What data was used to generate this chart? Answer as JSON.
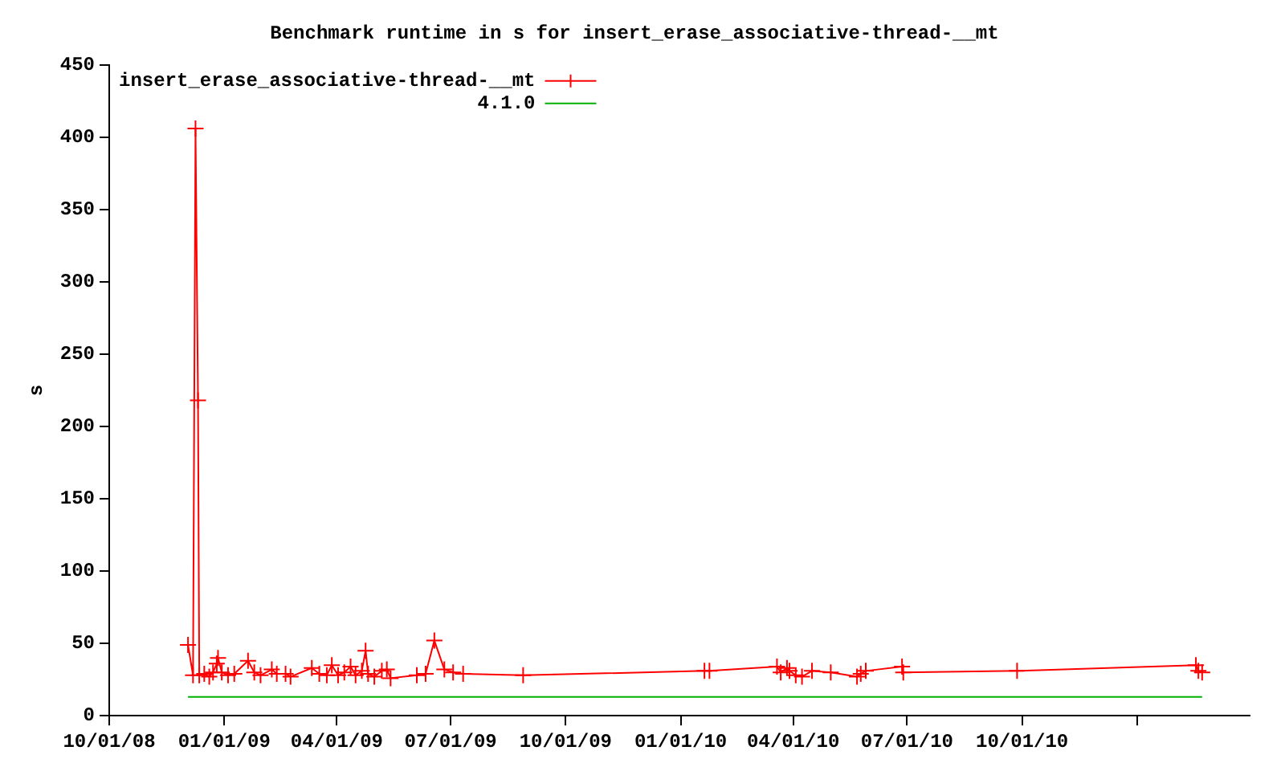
{
  "chart_data": {
    "type": "line",
    "title": "Benchmark runtime in s for insert_erase_associative-thread-__mt",
    "ylabel": "s",
    "xlim": [
      "2008-10-01",
      "2011-04-01"
    ],
    "xticks": [
      {
        "value": "2008-10-01",
        "label": "10/01/08"
      },
      {
        "value": "2009-01-01",
        "label": "01/01/09"
      },
      {
        "value": "2009-04-01",
        "label": "04/01/09"
      },
      {
        "value": "2009-07-01",
        "label": "07/01/09"
      },
      {
        "value": "2009-10-01",
        "label": "10/01/09"
      },
      {
        "value": "2010-01-01",
        "label": "01/01/10"
      },
      {
        "value": "2010-04-01",
        "label": "04/01/10"
      },
      {
        "value": "2010-07-01",
        "label": "07/01/10"
      },
      {
        "value": "2010-10-01",
        "label": "10/01/10"
      },
      {
        "value": "2011-01-01",
        "label": null
      }
    ],
    "ylim": [
      0,
      450
    ],
    "yticks": [
      0,
      50,
      100,
      150,
      200,
      250,
      300,
      350,
      400,
      450
    ],
    "grid": false,
    "legend": "top left",
    "series": [
      {
        "name": "insert_erase_associative-thread-__mt",
        "color": "#ff0000",
        "marker": "cross",
        "x": [
          "2008-12-03",
          "2008-12-07",
          "2008-12-09",
          "2008-12-11",
          "2008-12-12",
          "2008-12-16",
          "2008-12-20",
          "2008-12-23",
          "2008-12-26",
          "2008-12-27",
          "2008-12-30",
          "2009-01-04",
          "2009-01-09",
          "2009-01-20",
          "2009-01-25",
          "2009-01-30",
          "2009-02-08",
          "2009-02-12",
          "2009-02-19",
          "2009-02-23",
          "2009-03-12",
          "2009-03-18",
          "2009-03-24",
          "2009-03-28",
          "2009-04-02",
          "2009-04-07",
          "2009-04-12",
          "2009-04-16",
          "2009-04-21",
          "2009-04-24",
          "2009-04-26",
          "2009-05-01",
          "2009-05-07",
          "2009-05-11",
          "2009-05-14",
          "2009-06-04",
          "2009-06-11",
          "2009-06-18",
          "2009-06-26",
          "2009-07-03",
          "2009-07-11",
          "2009-08-28",
          "2010-01-20",
          "2010-01-24",
          "2010-03-19",
          "2010-03-22",
          "2010-03-27",
          "2010-03-29",
          "2010-04-03",
          "2010-04-08",
          "2010-04-16",
          "2010-05-01",
          "2010-05-22",
          "2010-05-25",
          "2010-05-29",
          "2010-06-27",
          "2010-06-28",
          "2010-09-27",
          "2011-02-17",
          "2011-02-19",
          "2011-02-22"
        ],
        "values": [
          49,
          28,
          406,
          218,
          28,
          29,
          27,
          30,
          36,
          40,
          30,
          28,
          29,
          38,
          30,
          28,
          32,
          29,
          29,
          27,
          33,
          29,
          28,
          35,
          28,
          30,
          34,
          28,
          31,
          45,
          29,
          27,
          31,
          32,
          26,
          28,
          29,
          52,
          32,
          30,
          29,
          28,
          31,
          31,
          34,
          30,
          33,
          31,
          28,
          27,
          31,
          30,
          27,
          29,
          31,
          34,
          30,
          31,
          35,
          31,
          30
        ]
      },
      {
        "name": "4.1.0",
        "color": "#00b000",
        "marker": "none",
        "x": [
          "2008-12-03",
          "2011-02-22"
        ],
        "values": [
          13,
          13
        ]
      }
    ]
  }
}
